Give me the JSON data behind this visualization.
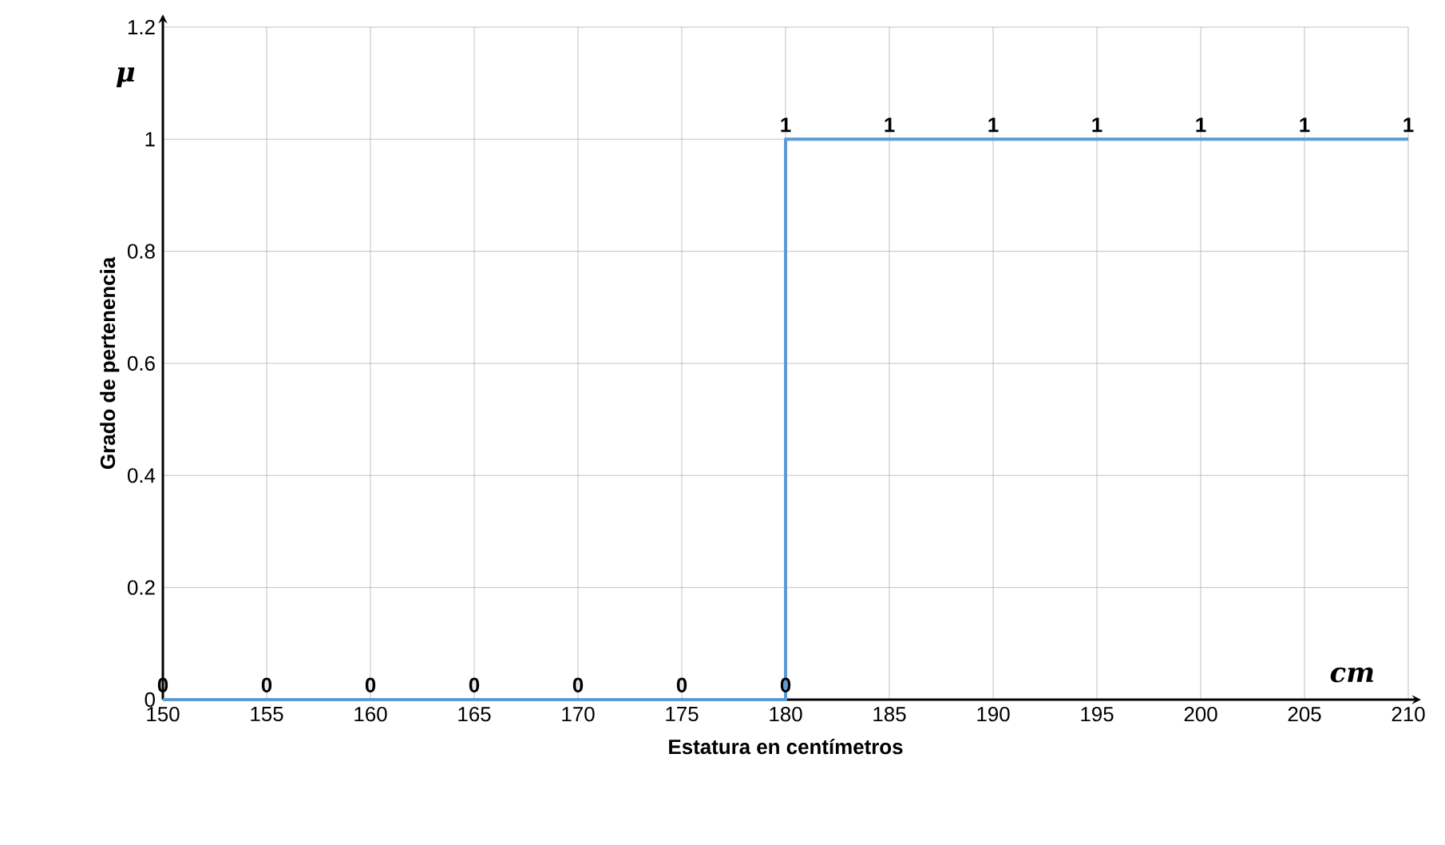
{
  "chart_data": {
    "type": "line",
    "xlabel": "Estatura en centímetros",
    "ylabel": "Grado de pertenencia",
    "annotations": [
      "μ",
      "cm"
    ],
    "series": [
      {
        "color": "#5b9bd5",
        "x": [
          150,
          155,
          160,
          165,
          170,
          175,
          180,
          180,
          185,
          190,
          195,
          200,
          205,
          210
        ],
        "values": [
          0,
          0,
          0,
          0,
          0,
          0,
          0,
          1,
          1,
          1,
          1,
          1,
          1,
          1
        ]
      }
    ],
    "xlim": [
      150,
      210
    ],
    "xticks": [
      150,
      155,
      160,
      165,
      170,
      175,
      180,
      185,
      190,
      195,
      200,
      205,
      210
    ],
    "ylim": [
      0,
      1.2
    ],
    "yticks": [
      0,
      0.2,
      0.4,
      0.6,
      0.8,
      1,
      1.2
    ],
    "grid": true,
    "data_labels": true,
    "marker": "none",
    "line_style": "solid"
  }
}
